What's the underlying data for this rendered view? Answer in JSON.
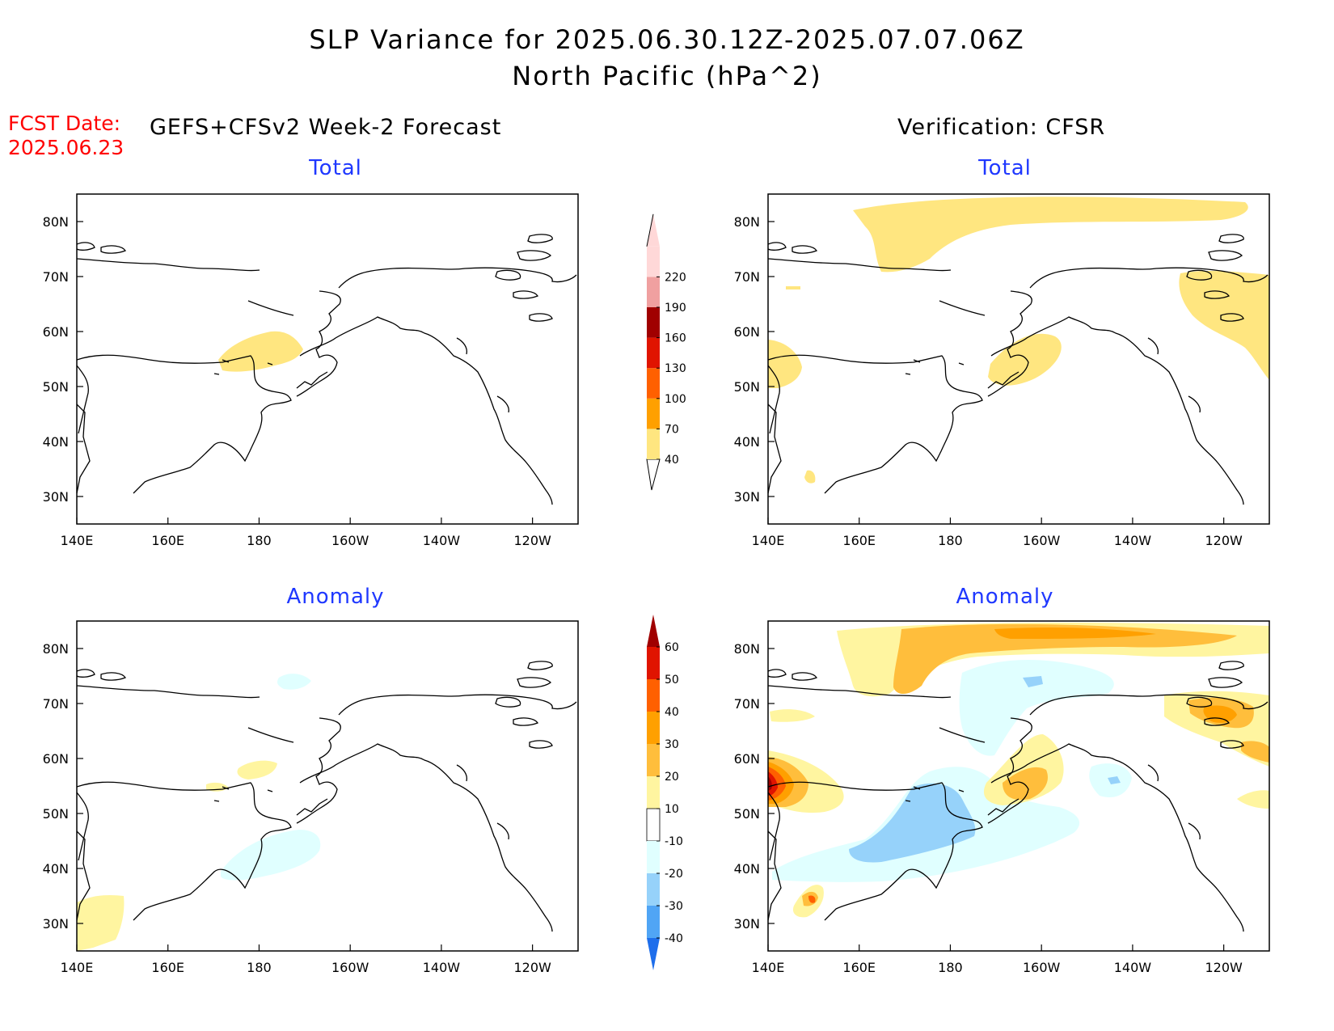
{
  "title": {
    "line1": "SLP Variance for 2025.06.30.12Z-2025.07.07.06Z",
    "line2": "North Pacific (hPa^2)"
  },
  "fcst_date": {
    "label": "FCST Date:",
    "value": "2025.06.23"
  },
  "columns": {
    "forecast": "GEFS+CFSv2 Week-2 Forecast",
    "verification": "Verification: CFSR"
  },
  "panels": [
    {
      "id": "fcst-total",
      "title": "Total"
    },
    {
      "id": "verif-total",
      "title": "Total"
    },
    {
      "id": "fcst-anom",
      "title": "Anomaly"
    },
    {
      "id": "verif-anom",
      "title": "Anomaly"
    }
  ],
  "axes": {
    "x_ticks": [
      "140E",
      "160E",
      "180",
      "160W",
      "140W",
      "120W"
    ],
    "x_values_deg_east": [
      140,
      160,
      180,
      200,
      220,
      240
    ],
    "y_ticks": [
      "80N",
      "70N",
      "60N",
      "50N",
      "40N",
      "30N"
    ],
    "y_values_deg_north": [
      80,
      70,
      60,
      50,
      40,
      30
    ],
    "lon_range_deg_east": [
      140,
      250
    ],
    "lat_range_deg_north": [
      25,
      85
    ]
  },
  "colorbars": {
    "total": {
      "levels": [
        "40",
        "70",
        "100",
        "130",
        "160",
        "190",
        "220"
      ],
      "colors": [
        "#ffe680",
        "#ffa000",
        "#ff6000",
        "#e01400",
        "#a00000",
        "#f0a0a0",
        "#ffd8d8"
      ]
    },
    "anomaly": {
      "levels": [
        "60",
        "50",
        "40",
        "30",
        "20",
        "10",
        "-10",
        "-20",
        "-30",
        "-40"
      ],
      "colors_top_to_bottom": [
        "#a00000",
        "#e01400",
        "#ff6000",
        "#ffa000",
        "#ffbe3c",
        "#fff5a0",
        "#ffffff",
        "#e0ffff",
        "#96d2fa",
        "#50a5f5",
        "#1e6eeb"
      ]
    }
  }
}
